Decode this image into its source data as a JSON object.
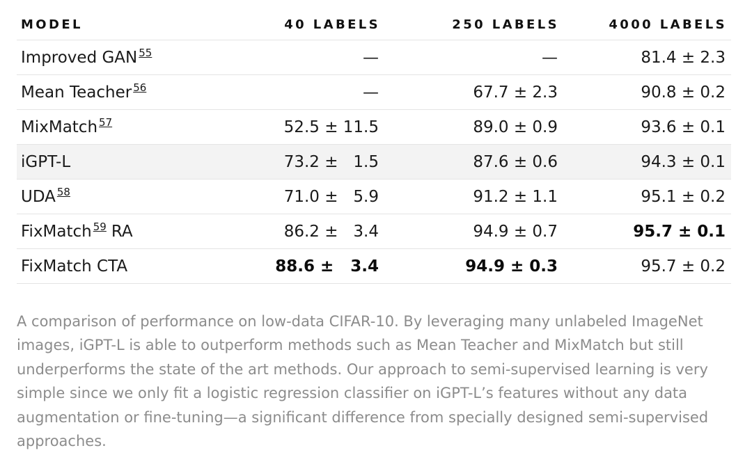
{
  "table": {
    "headers": [
      "MODEL",
      "40 LABELS",
      "250 LABELS",
      "4000 LABELS"
    ],
    "rows": [
      {
        "model": "Improved GAN",
        "ref": "55",
        "suffix": "",
        "c40": "—",
        "c250": "—",
        "c4000": "81.4 ± 2.3"
      },
      {
        "model": "Mean Teacher",
        "ref": "56",
        "suffix": "",
        "c40": "—",
        "c250": "67.7 ± 2.3",
        "c4000": "90.8 ± 0.2"
      },
      {
        "model": "MixMatch",
        "ref": "57",
        "suffix": "",
        "c40": "52.5 ± 11.5",
        "c250": "89.0 ± 0.9",
        "c4000": "93.6 ± 0.1"
      },
      {
        "model": "iGPT-L",
        "ref": "",
        "suffix": "",
        "c40": "73.2 ±   1.5",
        "c250": "87.6 ± 0.6",
        "c4000": "94.3 ± 0.1"
      },
      {
        "model": "UDA",
        "ref": "58",
        "suffix": "",
        "c40": "71.0 ±   5.9",
        "c250": "91.2 ± 1.1",
        "c4000": "95.1 ± 0.2"
      },
      {
        "model": "FixMatch",
        "ref": "59",
        "suffix": "RA",
        "c40": "86.2 ±   3.4",
        "c250": "94.9 ± 0.7",
        "c4000": "95.7 ± 0.1"
      },
      {
        "model": "FixMatch CTA",
        "ref": "",
        "suffix": "",
        "c40": "88.6 ±   3.4",
        "c250": "94.9 ± 0.3",
        "c4000": "95.7 ± 0.2"
      }
    ]
  },
  "caption": "A comparison of performance on low-data CIFAR-10. By leveraging many unlabeled ImageNet images, iGPT-L is able to outperform methods such as Mean Teacher and MixMatch but still underperforms the state of the art methods. Our approach to semi-supervised learning is very simple since we only fit a logistic regression classifier on iGPT-L’s features without any data augmentation or fine-tuning—a significant difference from specially designed semi-supervised approaches."
}
